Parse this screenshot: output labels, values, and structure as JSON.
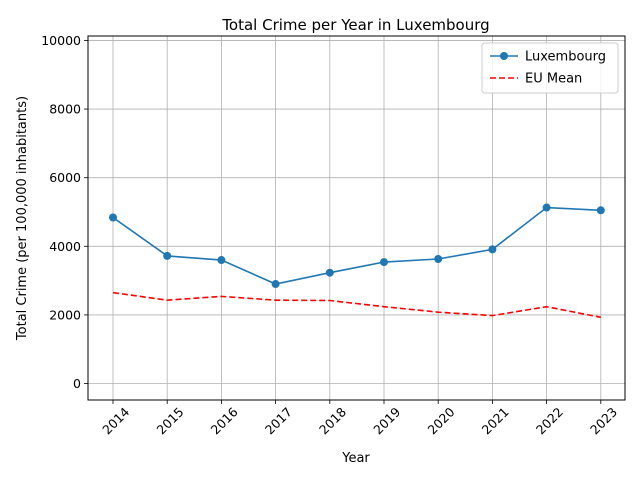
{
  "chart_data": {
    "type": "line",
    "title": "Total Crime per Year in Luxembourg",
    "xlabel": "Year",
    "ylabel": "Total Crime (per 100,000 inhabitants)",
    "categories": [
      "2014",
      "2015",
      "2016",
      "2017",
      "2018",
      "2019",
      "2020",
      "2021",
      "2022",
      "2023"
    ],
    "yticks": [
      0,
      2000,
      4000,
      6000,
      8000,
      10000
    ],
    "ylim": [
      -480,
      10130
    ],
    "grid": true,
    "legend_position": "top-right",
    "series": [
      {
        "name": "Luxembourg",
        "color": "#1f77b4",
        "style": "solid",
        "marker": "circle",
        "values": [
          4840,
          3720,
          3600,
          2900,
          3230,
          3540,
          3630,
          3910,
          5130,
          5050
        ]
      },
      {
        "name": "EU Mean",
        "color": "#ff0000",
        "style": "dashed",
        "marker": "none",
        "values": [
          2650,
          2430,
          2540,
          2430,
          2420,
          2240,
          2080,
          1980,
          2240,
          1930
        ]
      }
    ]
  }
}
